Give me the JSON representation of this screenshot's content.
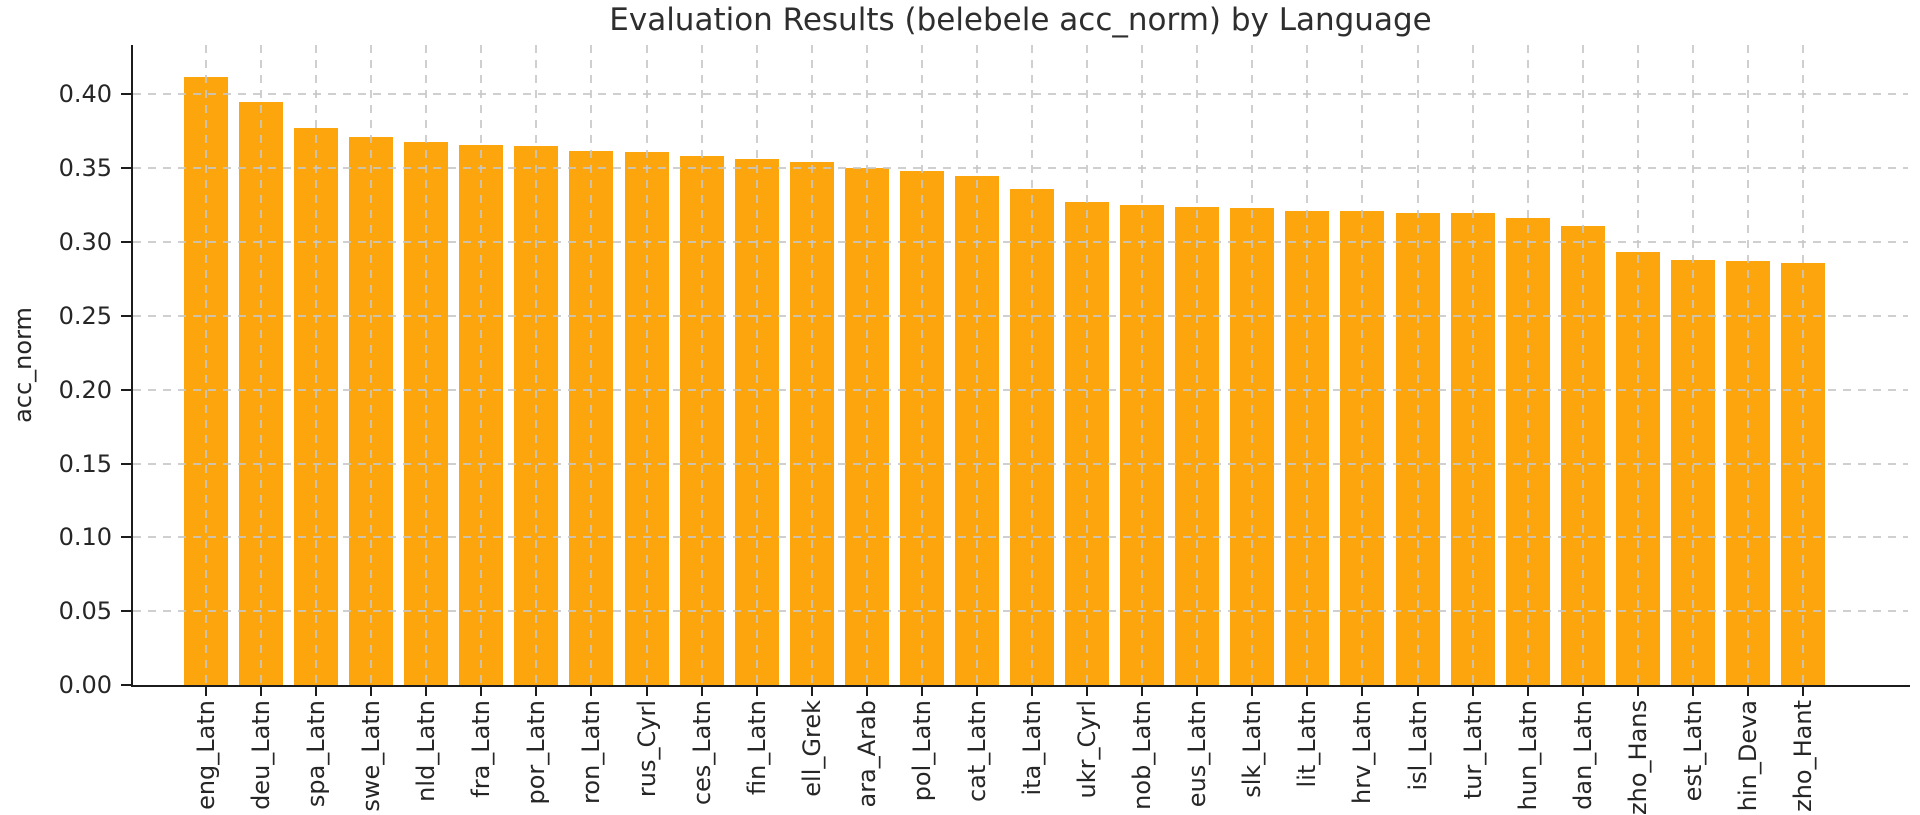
{
  "figure": {
    "background": "#FFFFFF"
  },
  "chart_data": {
    "type": "bar",
    "title": "Evaluation Results (belebele acc_norm) by Language",
    "xlabel": "",
    "ylabel": "acc_norm",
    "categories": [
      "eng_Latn",
      "deu_Latn",
      "spa_Latn",
      "swe_Latn",
      "nld_Latn",
      "fra_Latn",
      "por_Latn",
      "ron_Latn",
      "rus_Cyrl",
      "ces_Latn",
      "fin_Latn",
      "ell_Grek",
      "ara_Arab",
      "pol_Latn",
      "cat_Latn",
      "ita_Latn",
      "ukr_Cyrl",
      "nob_Latn",
      "eus_Latn",
      "slk_Latn",
      "lit_Latn",
      "hrv_Latn",
      "isl_Latn",
      "tur_Latn",
      "hun_Latn",
      "dan_Latn",
      "zho_Hans",
      "est_Latn",
      "hin_Deva",
      "zho_Hant"
    ],
    "values": [
      0.412,
      0.395,
      0.377,
      0.371,
      0.368,
      0.366,
      0.365,
      0.362,
      0.361,
      0.358,
      0.356,
      0.354,
      0.35,
      0.348,
      0.345,
      0.336,
      0.327,
      0.325,
      0.324,
      0.323,
      0.321,
      0.321,
      0.32,
      0.32,
      0.316,
      0.311,
      0.293,
      0.288,
      0.287,
      0.286
    ],
    "ytick_labels": [
      "0.00",
      "0.05",
      "0.10",
      "0.15",
      "0.20",
      "0.25",
      "0.30",
      "0.35",
      "0.40"
    ],
    "ytick_values": [
      0.0,
      0.05,
      0.1,
      0.15,
      0.2,
      0.25,
      0.3,
      0.35,
      0.4
    ],
    "ylim": [
      0,
      0.4335
    ],
    "bar_color": "#FCA50D",
    "grid": {
      "show": true,
      "style": "dashed",
      "axes": "both",
      "color": "#C7C7C7",
      "above_bars": true
    },
    "legend_position": "none"
  }
}
